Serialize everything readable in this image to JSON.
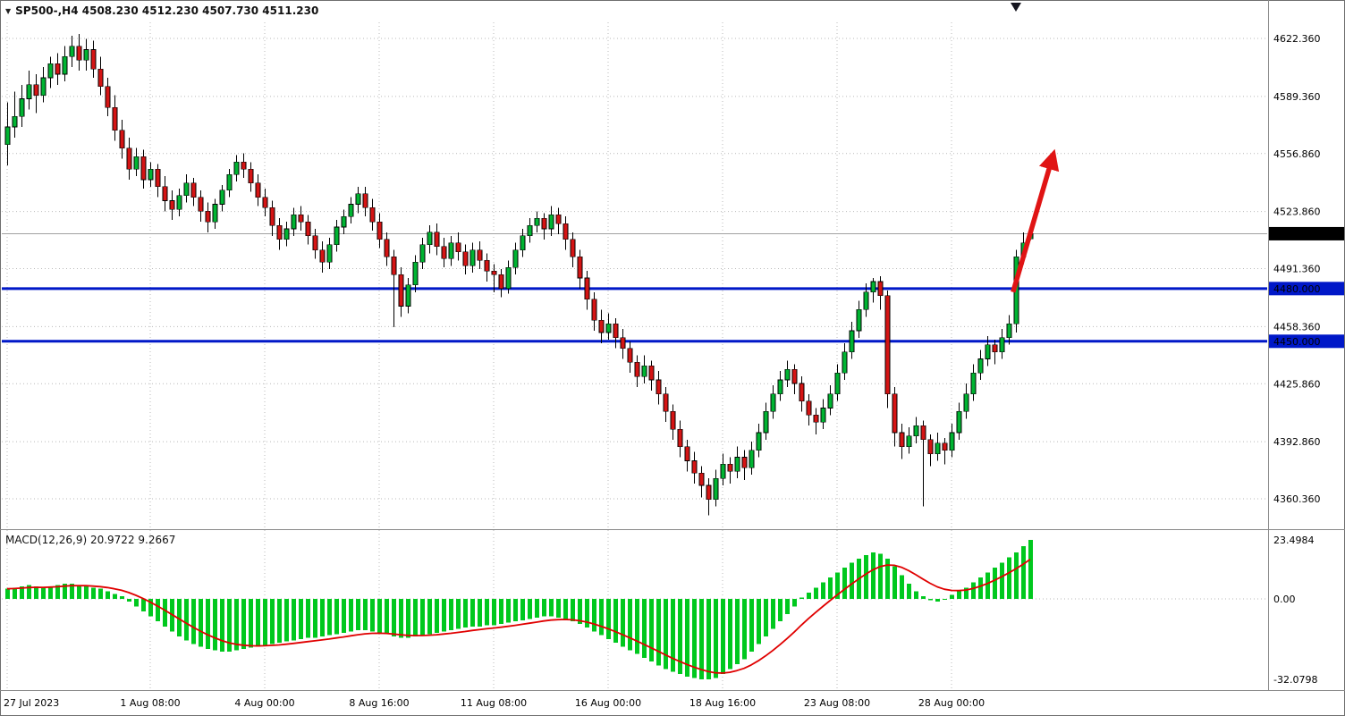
{
  "header": {
    "dropdown_icon": "▼",
    "symbol_info": "SP500-,H4 4508.230 4512.230 4507.730 4511.230"
  },
  "colors": {
    "background": "#FFFFFF",
    "bull": "#00B432",
    "bear": "#D51414",
    "wick": "#000000",
    "grid": "#B9B9B9",
    "separator": "#8A8A8A",
    "level_line": "#0018C8",
    "current_price_line": "#A0A0A0",
    "current_badge_bg": "#000000",
    "badge_text": "#FFFFFF",
    "arrow": "#E01414",
    "macd_histogram": "#00C81E",
    "macd_signal": "#E00000",
    "axis_text": "#000000"
  },
  "chart_data": {
    "type": "candlestick",
    "symbol": "SP500-",
    "timeframe": "H4",
    "title": "SP500-,H4",
    "last_bar_ohlc": {
      "open": "4508.230",
      "high": "4512.230",
      "low": "4507.730",
      "close": "4511.230"
    },
    "price_ticks": [
      "4622.360",
      "4589.360",
      "4556.860",
      "4523.860",
      "4491.360",
      "4458.360",
      "4425.860",
      "4392.860",
      "4360.360"
    ],
    "time_labels": [
      {
        "bar": 0,
        "label": "27 Jul 2023"
      },
      {
        "bar": 20,
        "label": "1 Aug 08:00"
      },
      {
        "bar": 36,
        "label": "4 Aug 00:00"
      },
      {
        "bar": 52,
        "label": "8 Aug 16:00"
      },
      {
        "bar": 68,
        "label": "11 Aug 08:00"
      },
      {
        "bar": 84,
        "label": "16 Aug 00:00"
      },
      {
        "bar": 100,
        "label": "18 Aug 16:00"
      },
      {
        "bar": 116,
        "label": "23 Aug 08:00"
      },
      {
        "bar": 132,
        "label": "28 Aug 00:00"
      }
    ],
    "horizontal_levels": [
      {
        "price": 4480,
        "label": "4480.000"
      },
      {
        "price": 4450,
        "label": "4450.000"
      }
    ],
    "current_price": {
      "price": 4511.23,
      "label": "4511.230"
    },
    "trend_arrow": {
      "from_bar": 140.6,
      "from_price": 4478,
      "to_bar": 146.2,
      "to_price": 4556
    },
    "top_marker_bar": 141,
    "candles": [
      [
        4562,
        4586,
        4550,
        4572
      ],
      [
        4572,
        4592,
        4566,
        4578
      ],
      [
        4578,
        4596,
        4572,
        4588
      ],
      [
        4588,
        4604,
        4582,
        4596
      ],
      [
        4596,
        4602,
        4580,
        4590
      ],
      [
        4590,
        4606,
        4586,
        4600
      ],
      [
        4600,
        4612,
        4594,
        4608
      ],
      [
        4608,
        4614,
        4596,
        4602
      ],
      [
        4602,
        4618,
        4598,
        4612
      ],
      [
        4612,
        4624,
        4606,
        4618
      ],
      [
        4618,
        4625,
        4604,
        4610
      ],
      [
        4610,
        4622,
        4604,
        4616
      ],
      [
        4616,
        4621,
        4600,
        4605
      ],
      [
        4605,
        4612,
        4590,
        4595
      ],
      [
        4595,
        4600,
        4578,
        4583
      ],
      [
        4583,
        4590,
        4564,
        4570
      ],
      [
        4570,
        4576,
        4554,
        4560
      ],
      [
        4560,
        4566,
        4542,
        4548
      ],
      [
        4548,
        4560,
        4544,
        4555
      ],
      [
        4555,
        4559,
        4537,
        4542
      ],
      [
        4542,
        4552,
        4538,
        4548
      ],
      [
        4548,
        4551,
        4532,
        4538
      ],
      [
        4538,
        4544,
        4524,
        4530
      ],
      [
        4530,
        4536,
        4519,
        4525
      ],
      [
        4525,
        4537,
        4521,
        4533
      ],
      [
        4533,
        4545,
        4529,
        4540
      ],
      [
        4540,
        4543,
        4527,
        4532
      ],
      [
        4532,
        4536,
        4518,
        4524
      ],
      [
        4524,
        4529,
        4512,
        4518
      ],
      [
        4518,
        4531,
        4514,
        4528
      ],
      [
        4528,
        4539,
        4524,
        4536
      ],
      [
        4536,
        4548,
        4532,
        4545
      ],
      [
        4545,
        4556,
        4541,
        4552
      ],
      [
        4552,
        4557,
        4543,
        4548
      ],
      [
        4548,
        4552,
        4535,
        4540
      ],
      [
        4540,
        4545,
        4527,
        4532
      ],
      [
        4532,
        4537,
        4521,
        4526
      ],
      [
        4526,
        4530,
        4510,
        4516
      ],
      [
        4516,
        4520,
        4502,
        4508
      ],
      [
        4508,
        4518,
        4504,
        4514
      ],
      [
        4514,
        4526,
        4510,
        4522
      ],
      [
        4522,
        4527,
        4513,
        4518
      ],
      [
        4518,
        4522,
        4505,
        4510
      ],
      [
        4510,
        4514,
        4497,
        4502
      ],
      [
        4502,
        4507,
        4489,
        4495
      ],
      [
        4495,
        4509,
        4491,
        4505
      ],
      [
        4505,
        4519,
        4501,
        4515
      ],
      [
        4515,
        4525,
        4511,
        4521
      ],
      [
        4521,
        4532,
        4517,
        4528
      ],
      [
        4528,
        4538,
        4523,
        4534
      ],
      [
        4534,
        4538,
        4521,
        4526
      ],
      [
        4526,
        4531,
        4513,
        4518
      ],
      [
        4518,
        4523,
        4503,
        4508
      ],
      [
        4508,
        4512,
        4493,
        4498
      ],
      [
        4498,
        4502,
        4458,
        4488
      ],
      [
        4488,
        4492,
        4464,
        4470
      ],
      [
        4470,
        4486,
        4466,
        4482
      ],
      [
        4482,
        4499,
        4478,
        4495
      ],
      [
        4495,
        4509,
        4491,
        4505
      ],
      [
        4505,
        4516,
        4500,
        4512
      ],
      [
        4512,
        4517,
        4499,
        4504
      ],
      [
        4504,
        4509,
        4492,
        4497
      ],
      [
        4497,
        4510,
        4493,
        4506
      ],
      [
        4506,
        4512,
        4496,
        4501
      ],
      [
        4501,
        4505,
        4488,
        4493
      ],
      [
        4493,
        4506,
        4489,
        4502
      ],
      [
        4502,
        4507,
        4491,
        4496
      ],
      [
        4496,
        4500,
        4484,
        4490
      ],
      [
        4490,
        4494,
        4478,
        4488
      ],
      [
        4488,
        4491,
        4475,
        4480
      ],
      [
        4480,
        4496,
        4477,
        4492
      ],
      [
        4492,
        4506,
        4488,
        4502
      ],
      [
        4502,
        4514,
        4498,
        4510
      ],
      [
        4510,
        4520,
        4506,
        4516
      ],
      [
        4516,
        4524,
        4512,
        4520
      ],
      [
        4520,
        4523,
        4508,
        4514
      ],
      [
        4514,
        4527,
        4510,
        4522
      ],
      [
        4522,
        4526,
        4511,
        4517
      ],
      [
        4517,
        4521,
        4502,
        4508
      ],
      [
        4508,
        4512,
        4492,
        4498
      ],
      [
        4498,
        4502,
        4480,
        4486
      ],
      [
        4486,
        4490,
        4468,
        4474
      ],
      [
        4474,
        4478,
        4456,
        4462
      ],
      [
        4462,
        4468,
        4449,
        4455
      ],
      [
        4455,
        4466,
        4451,
        4460
      ],
      [
        4460,
        4463,
        4446,
        4452
      ],
      [
        4452,
        4457,
        4440,
        4446
      ],
      [
        4446,
        4450,
        4432,
        4438
      ],
      [
        4438,
        4442,
        4424,
        4430
      ],
      [
        4430,
        4442,
        4426,
        4436
      ],
      [
        4436,
        4439,
        4422,
        4428
      ],
      [
        4428,
        4433,
        4414,
        4420
      ],
      [
        4420,
        4424,
        4404,
        4410
      ],
      [
        4410,
        4414,
        4394,
        4400
      ],
      [
        4400,
        4405,
        4384,
        4390
      ],
      [
        4390,
        4394,
        4376,
        4382
      ],
      [
        4382,
        4387,
        4369,
        4375
      ],
      [
        4375,
        4379,
        4361,
        4368
      ],
      [
        4368,
        4372,
        4351,
        4360
      ],
      [
        4360,
        4377,
        4356,
        4372
      ],
      [
        4372,
        4386,
        4368,
        4380
      ],
      [
        4380,
        4384,
        4369,
        4376
      ],
      [
        4376,
        4390,
        4372,
        4384
      ],
      [
        4384,
        4388,
        4371,
        4378
      ],
      [
        4378,
        4393,
        4374,
        4388
      ],
      [
        4388,
        4403,
        4384,
        4398
      ],
      [
        4398,
        4415,
        4394,
        4410
      ],
      [
        4410,
        4425,
        4406,
        4420
      ],
      [
        4420,
        4433,
        4416,
        4428
      ],
      [
        4428,
        4439,
        4424,
        4434
      ],
      [
        4434,
        4437,
        4420,
        4426
      ],
      [
        4426,
        4430,
        4410,
        4416
      ],
      [
        4416,
        4420,
        4402,
        4408
      ],
      [
        4408,
        4412,
        4397,
        4404
      ],
      [
        4404,
        4417,
        4400,
        4412
      ],
      [
        4412,
        4425,
        4408,
        4420
      ],
      [
        4420,
        4437,
        4416,
        4432
      ],
      [
        4432,
        4449,
        4428,
        4444
      ],
      [
        4444,
        4461,
        4440,
        4456
      ],
      [
        4456,
        4473,
        4452,
        4468
      ],
      [
        4468,
        4483,
        4464,
        4478
      ],
      [
        4478,
        4486,
        4472,
        4484
      ],
      [
        4484,
        4487,
        4468,
        4476
      ],
      [
        4476,
        4479,
        4412,
        4420
      ],
      [
        4420,
        4424,
        4390,
        4398
      ],
      [
        4398,
        4403,
        4383,
        4390
      ],
      [
        4390,
        4401,
        4386,
        4396
      ],
      [
        4396,
        4407,
        4392,
        4402
      ],
      [
        4402,
        4405,
        4356,
        4394
      ],
      [
        4394,
        4397,
        4379,
        4386
      ],
      [
        4386,
        4398,
        4382,
        4392
      ],
      [
        4392,
        4395,
        4380,
        4388
      ],
      [
        4388,
        4403,
        4384,
        4398
      ],
      [
        4398,
        4415,
        4394,
        4410
      ],
      [
        4410,
        4426,
        4406,
        4420
      ],
      [
        4420,
        4437,
        4416,
        4432
      ],
      [
        4432,
        4445,
        4428,
        4440
      ],
      [
        4440,
        4453,
        4436,
        4448
      ],
      [
        4448,
        4451,
        4437,
        4444
      ],
      [
        4444,
        4457,
        4440,
        4452
      ],
      [
        4452,
        4465,
        4448,
        4460
      ],
      [
        4460,
        4502,
        4455,
        4498
      ],
      [
        4498,
        4512,
        4494,
        4506
      ],
      [
        4508.23,
        4512.23,
        4507.73,
        4511.23
      ]
    ],
    "macd": {
      "label": "MACD(12,26,9) 20.9722 9.2667",
      "params": "12,26,9",
      "main_value": "20.9722",
      "signal_value": "9.2667",
      "ticks": [
        {
          "value": 23.4984,
          "label": "23.4984"
        },
        {
          "value": 0,
          "label": "0.00"
        },
        {
          "value": -32.0798,
          "label": "-32.0798"
        }
      ],
      "histogram": [
        4,
        4.5,
        5,
        5.5,
        5,
        4.5,
        5,
        5.5,
        6,
        6,
        5.5,
        5,
        4.5,
        4,
        3,
        2,
        1,
        -1,
        -3,
        -5,
        -7,
        -9,
        -11,
        -13,
        -15,
        -16.5,
        -18,
        -19,
        -20,
        -20.5,
        -21,
        -21,
        -20.5,
        -20,
        -19.5,
        -19,
        -18.5,
        -18,
        -17.5,
        -17,
        -16.5,
        -16,
        -15.5,
        -15.5,
        -15,
        -14.5,
        -14,
        -13.5,
        -13,
        -12.5,
        -12.5,
        -13,
        -13.5,
        -14,
        -15,
        -15.5,
        -15.5,
        -15,
        -14.5,
        -14,
        -13.5,
        -13,
        -12.5,
        -12,
        -11.5,
        -11,
        -11,
        -10.5,
        -10.5,
        -10,
        -9.5,
        -9,
        -8.5,
        -8,
        -7.5,
        -7,
        -7,
        -7.5,
        -8,
        -9,
        -10,
        -11.5,
        -13,
        -14.5,
        -16,
        -17.5,
        -19,
        -20.5,
        -22,
        -23.5,
        -25,
        -26.5,
        -28,
        -29,
        -30,
        -31,
        -31.5,
        -32,
        -32.1,
        -31.5,
        -30,
        -28,
        -26,
        -24,
        -21,
        -18,
        -15,
        -12,
        -9,
        -6,
        -3,
        0.5,
        2.5,
        4.5,
        6.5,
        8.5,
        10.5,
        12.5,
        14.5,
        16,
        17.5,
        18.5,
        18,
        16,
        13,
        9.5,
        6,
        3,
        1,
        -0.5,
        -1,
        0,
        1.5,
        3,
        4.5,
        6.5,
        8.5,
        10.5,
        12.5,
        14.5,
        16.5,
        18.5,
        21,
        23.5
      ]
    }
  }
}
